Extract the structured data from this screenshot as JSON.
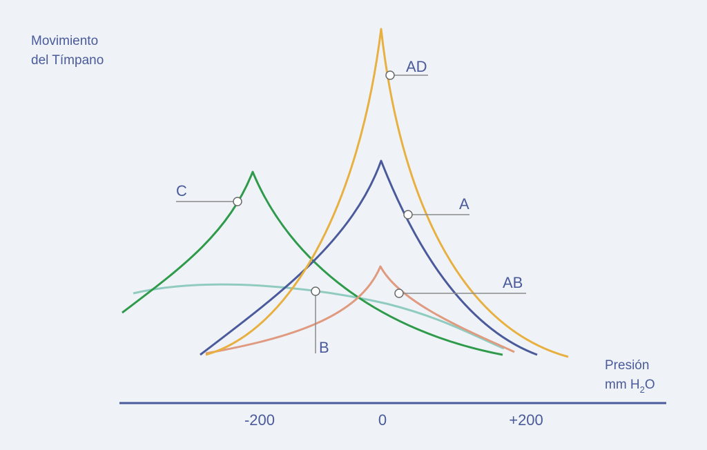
{
  "y_axis": {
    "label_lines": [
      "Movimiento",
      "del Tímpano"
    ]
  },
  "x_axis": {
    "label_line1": "Presión",
    "label_line2": {
      "before": "mm H",
      "sub": "2",
      "after": "O"
    },
    "ticks": [
      "-200",
      "0",
      "+200"
    ]
  },
  "curves": [
    {
      "label": "AD"
    },
    {
      "label": "A"
    },
    {
      "label": "AB"
    },
    {
      "label": "C"
    },
    {
      "label": "B"
    }
  ]
}
